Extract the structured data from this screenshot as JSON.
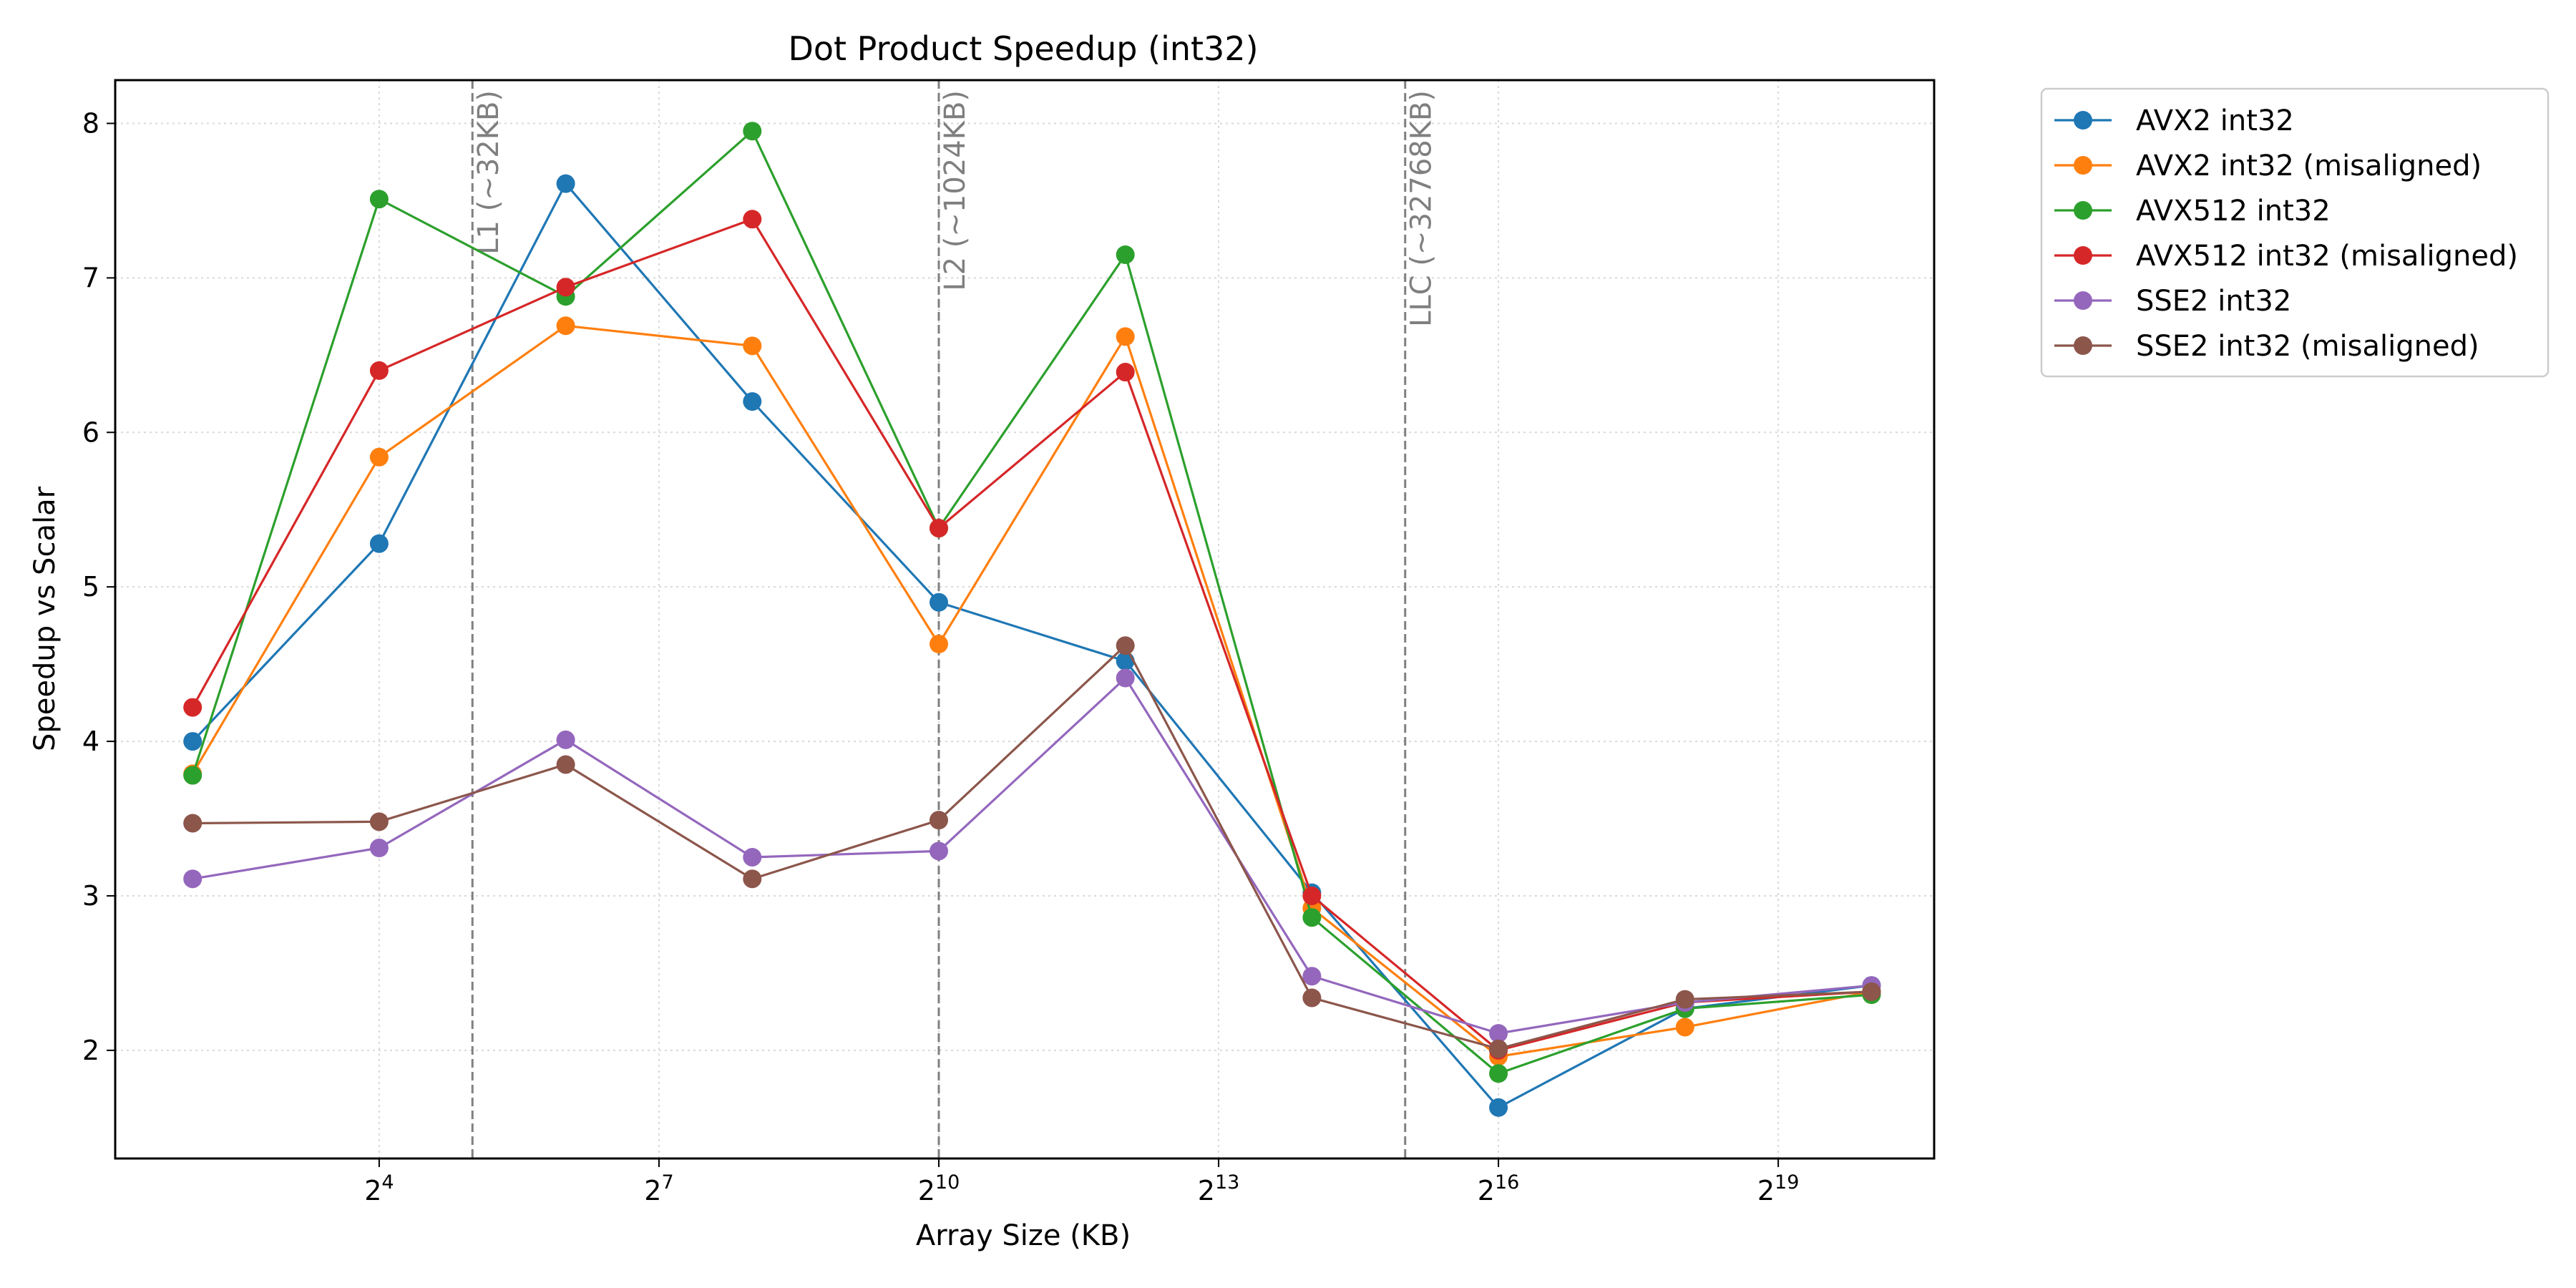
{
  "chart_data": {
    "type": "line",
    "title": "Dot Product Speedup (int32)",
    "xlabel": "Array Size (KB)",
    "ylabel": "Speedup vs Scalar",
    "x_scale": "log2",
    "x": [
      4,
      16,
      64,
      256,
      1024,
      4096,
      16384,
      65536,
      262144,
      1048576
    ],
    "xlim": [
      2.25,
      1670000
    ],
    "ylim": [
      1.3,
      8.28
    ],
    "x_ticks": [
      {
        "value": 16,
        "base": "2",
        "exp": "4"
      },
      {
        "value": 128,
        "base": "2",
        "exp": "7"
      },
      {
        "value": 1024,
        "base": "2",
        "exp": "10"
      },
      {
        "value": 8192,
        "base": "2",
        "exp": "13"
      },
      {
        "value": 65536,
        "base": "2",
        "exp": "16"
      },
      {
        "value": 524288,
        "base": "2",
        "exp": "19"
      }
    ],
    "y_ticks": [
      2,
      3,
      4,
      5,
      6,
      7,
      8
    ],
    "grid": true,
    "legend_position": "outside-top-right",
    "series": [
      {
        "name": "AVX2 int32",
        "color": "#1f77b4",
        "values": [
          4.0,
          5.28,
          7.61,
          6.2,
          4.9,
          4.52,
          3.02,
          1.63,
          2.27,
          2.42
        ]
      },
      {
        "name": "AVX2 int32 (misaligned)",
        "color": "#ff7f0e",
        "values": [
          3.79,
          5.84,
          6.69,
          6.56,
          4.63,
          6.62,
          2.92,
          1.96,
          2.15,
          2.38
        ]
      },
      {
        "name": "AVX512 int32",
        "color": "#2ca02c",
        "values": [
          3.78,
          7.51,
          6.88,
          7.95,
          5.38,
          7.15,
          2.86,
          1.85,
          2.27,
          2.36
        ]
      },
      {
        "name": "AVX512 int32 (misaligned)",
        "color": "#d62728",
        "values": [
          4.22,
          6.4,
          6.94,
          7.38,
          5.38,
          6.39,
          3.0,
          2.0,
          2.31,
          2.38
        ]
      },
      {
        "name": "SSE2 int32",
        "color": "#9467bd",
        "values": [
          3.11,
          3.31,
          4.01,
          3.25,
          3.29,
          4.41,
          2.48,
          2.11,
          2.31,
          2.42
        ]
      },
      {
        "name": "SSE2 int32 (misaligned)",
        "color": "#8c564b",
        "values": [
          3.47,
          3.48,
          3.85,
          3.11,
          3.49,
          4.62,
          2.34,
          2.01,
          2.33,
          2.38
        ]
      }
    ],
    "annotations": [
      {
        "x": 32,
        "label": "L1 (~32KB)"
      },
      {
        "x": 1024,
        "label": "L2 (~1024KB)"
      },
      {
        "x": 32768,
        "label": "LLC (~32768KB)"
      }
    ]
  }
}
